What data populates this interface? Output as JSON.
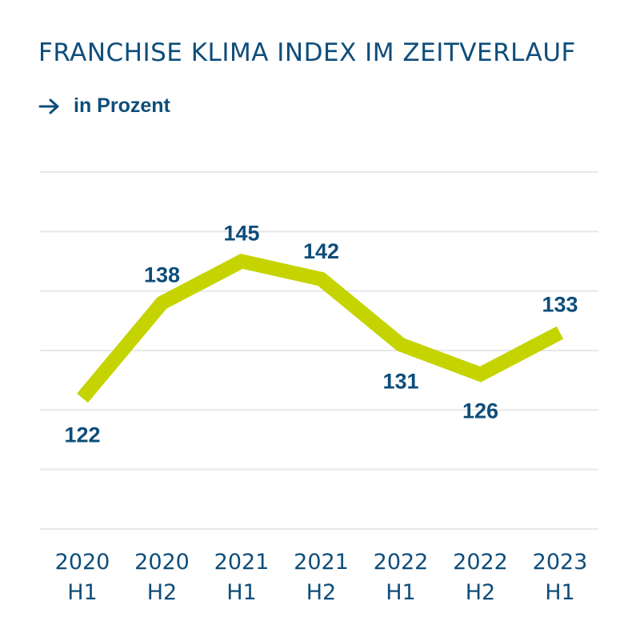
{
  "header": {
    "title": "FRANCHISE KLIMA INDEX IM ZEITVERLAUF",
    "subtitle": "in Prozent",
    "arrow_icon": "arrow-right-icon"
  },
  "colors": {
    "text": "#0e4d7a",
    "line": "#c5d400",
    "grid": "#e6e8ea"
  },
  "chart_data": {
    "type": "line",
    "title": "FRANCHISE KLIMA INDEX IM ZEITVERLAUF",
    "subtitle": "in Prozent",
    "xlabel": "",
    "ylabel": "",
    "categories": [
      [
        "2020",
        "H1"
      ],
      [
        "2020",
        "H2"
      ],
      [
        "2021",
        "H1"
      ],
      [
        "2021",
        "H2"
      ],
      [
        "2022",
        "H1"
      ],
      [
        "2022",
        "H2"
      ],
      [
        "2023",
        "H1"
      ]
    ],
    "series": [
      {
        "values": [
          122,
          138,
          145,
          142,
          131,
          126,
          133
        ],
        "label_position": [
          "below",
          "above",
          "above",
          "above",
          "below",
          "below",
          "above"
        ]
      }
    ],
    "ylim": [
      100,
      160
    ],
    "grid": true,
    "legend": "none"
  }
}
